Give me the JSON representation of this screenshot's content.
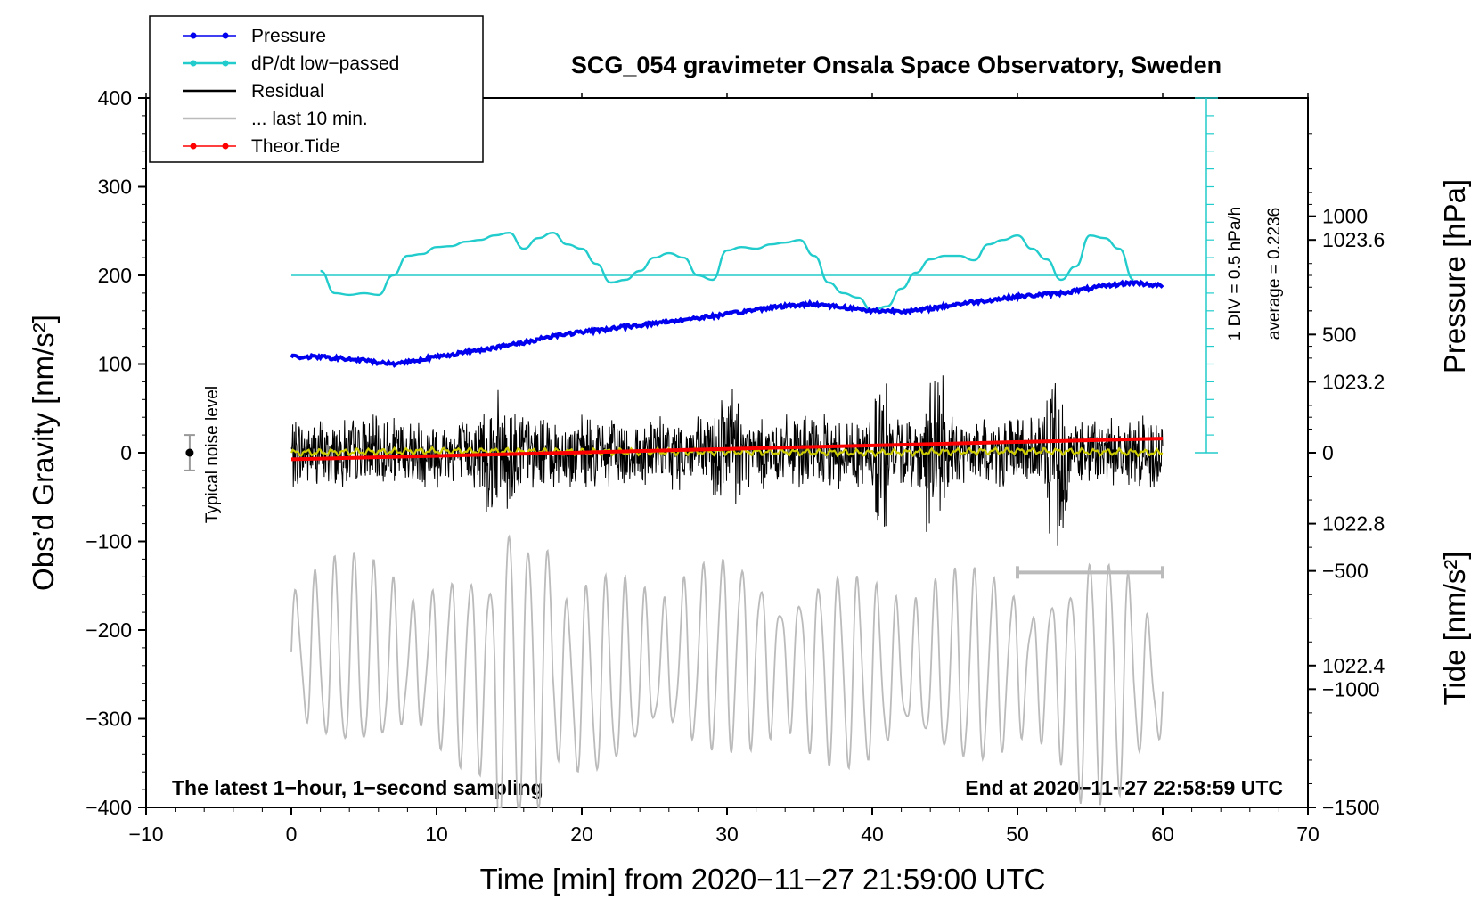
{
  "chart_data": {
    "type": "line",
    "title": "SCG_054 gravimeter Onsala Space Observatory, Sweden",
    "xlabel": "Time [min] from 2020−11−27 21:59:00 UTC",
    "ylabel_left": "Obs’d Gravity [nm/s²]",
    "ylabel_right_top": "Pressure [hPa]",
    "ylabel_right_bottom": "Tide [nm/s²]",
    "xlim": [
      -10,
      70
    ],
    "ylim": [
      -400,
      400
    ],
    "pressure_lim": [
      1022.0,
      1024.0
    ],
    "tide_lim": [
      -1500,
      1500
    ],
    "x_ticks": [
      "−10",
      "0",
      "10",
      "20",
      "30",
      "40",
      "50",
      "60",
      "70"
    ],
    "y_ticks": [
      "400",
      "300",
      "200",
      "100",
      "0",
      "−100",
      "−200",
      "−300",
      "−400"
    ],
    "pressure_ticks": [
      "1023.6",
      "1023.2",
      "1022.8",
      "1022.4"
    ],
    "tide_ticks": [
      "1000",
      "500",
      "0",
      "−500",
      "−1000",
      "−1500"
    ],
    "footer_left": "The latest 1−hour, 1−second sampling",
    "footer_right": "End at 2020−11−27 22:58:59 UTC",
    "noise_label": "Typical noise level",
    "dpdt_scale_label": "1 DIV = 0.5 hPa/h",
    "dpdt_average_label": "average = 0.2236",
    "legend": [
      {
        "label": "Pressure",
        "color": "#0000ee",
        "marker": true
      },
      {
        "label": "dP/dt low−passed",
        "color": "#22cccc",
        "marker": true
      },
      {
        "label": "Residual",
        "color": "#000000",
        "marker": false
      },
      {
        "label": "... last 10 min.",
        "color": "#bbbbbb",
        "marker": false
      },
      {
        "label": "Theor.Tide",
        "color": "#ff0000",
        "marker": true
      }
    ],
    "colors": {
      "pressure": "#0000ee",
      "dpdt": "#22cccc",
      "residual": "#000000",
      "residual_smooth": "#cccc00",
      "last10": "#bbbbbb",
      "tide": "#ff0000",
      "noise": "#999999"
    },
    "noise_level": {
      "x": -7,
      "y": 0,
      "half_range": 20
    },
    "last10_bar": {
      "x": [
        50,
        60
      ],
      "y": -135
    },
    "series": [
      {
        "name": "Pressure",
        "unit": "hPa",
        "x": [
          0,
          2,
          5,
          7,
          10,
          13,
          16,
          18,
          22,
          26,
          30,
          33,
          36,
          38,
          40,
          43,
          46,
          50,
          53,
          56,
          58,
          60
        ],
        "values": [
          1023.27,
          1023.27,
          1023.26,
          1023.25,
          1023.27,
          1023.29,
          1023.31,
          1023.33,
          1023.35,
          1023.37,
          1023.39,
          1023.41,
          1023.42,
          1023.41,
          1023.4,
          1023.4,
          1023.42,
          1023.44,
          1023.45,
          1023.47,
          1023.48,
          1023.47
        ]
      },
      {
        "name": "dP/dt low−passed",
        "unit": "nm/s² (plot scale)",
        "x": [
          2,
          3,
          4,
          5,
          6,
          7,
          8,
          9,
          10,
          11,
          12,
          13,
          14,
          15,
          16,
          17,
          18,
          19,
          20,
          21,
          22,
          23,
          24,
          25,
          26,
          27,
          28,
          29,
          30,
          31,
          32,
          33,
          34,
          35,
          36,
          37,
          38,
          39,
          40,
          41,
          42,
          43,
          44,
          45,
          46,
          47,
          48,
          49,
          50,
          51,
          52,
          53,
          54,
          55,
          56,
          57,
          58
        ],
        "values": [
          205,
          180,
          178,
          180,
          178,
          200,
          222,
          224,
          232,
          233,
          238,
          240,
          245,
          248,
          230,
          242,
          248,
          235,
          230,
          213,
          192,
          195,
          205,
          220,
          225,
          220,
          200,
          195,
          228,
          232,
          230,
          235,
          237,
          240,
          222,
          192,
          180,
          175,
          160,
          165,
          185,
          203,
          218,
          222,
          222,
          217,
          235,
          240,
          245,
          230,
          218,
          195,
          210,
          245,
          242,
          230,
          195
        ]
      },
      {
        "name": "Residual",
        "unit": "nm/s²",
        "x": [
          0,
          10,
          20,
          30,
          40,
          50,
          60
        ],
        "values": [
          0,
          2,
          1,
          1,
          0,
          2,
          0
        ]
      },
      {
        "name": "... last 10 min.",
        "unit": "nm/s² (shifted)",
        "x": [
          0,
          10,
          20,
          30,
          40,
          50,
          60
        ],
        "values": [
          -225,
          -240,
          -260,
          -225,
          -250,
          -240,
          -260
        ]
      },
      {
        "name": "Theor.Tide",
        "unit": "nm/s²",
        "x": [
          0,
          60
        ],
        "values": [
          -28,
          60
        ]
      }
    ]
  }
}
